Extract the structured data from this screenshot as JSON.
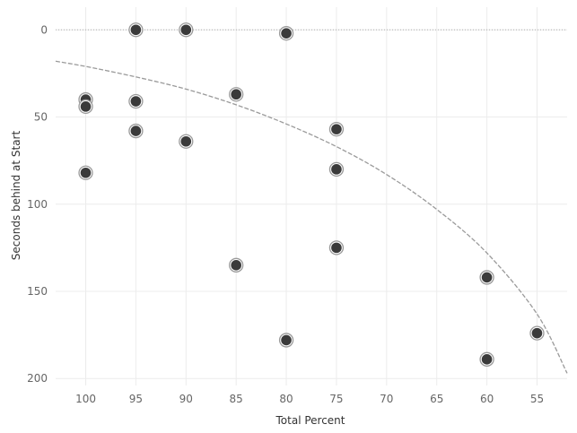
{
  "chart_data": {
    "type": "scatter",
    "title": "",
    "xlabel": "Total Percent",
    "ylabel": "Seconds behind at Start",
    "x_reversed": true,
    "y_reversed": true,
    "xlim": [
      103,
      52
    ],
    "ylim": [
      -13,
      204
    ],
    "x_ticks": [
      100,
      95,
      90,
      85,
      80,
      75,
      70,
      65,
      60,
      55
    ],
    "y_ticks": [
      0,
      50,
      100,
      150,
      200
    ],
    "grid": true,
    "legend": "none",
    "reference_line": {
      "y": 0,
      "style": "dotted"
    },
    "series": [
      {
        "points": [
          {
            "x": 100,
            "y": 40
          },
          {
            "x": 100,
            "y": 44
          },
          {
            "x": 100,
            "y": 82
          },
          {
            "x": 95,
            "y": 0
          },
          {
            "x": 95,
            "y": 41
          },
          {
            "x": 95,
            "y": 58
          },
          {
            "x": 90,
            "y": 0
          },
          {
            "x": 90,
            "y": 64
          },
          {
            "x": 85,
            "y": 37
          },
          {
            "x": 85,
            "y": 135
          },
          {
            "x": 80,
            "y": 2
          },
          {
            "x": 80,
            "y": 178
          },
          {
            "x": 75,
            "y": 57
          },
          {
            "x": 75,
            "y": 80
          },
          {
            "x": 75,
            "y": 125
          },
          {
            "x": 60,
            "y": 142
          },
          {
            "x": 60,
            "y": 189
          },
          {
            "x": 55,
            "y": 174
          }
        ]
      }
    ],
    "trend_line": {
      "style": "dashed",
      "points": [
        {
          "x": 103,
          "y": 18
        },
        {
          "x": 100,
          "y": 21
        },
        {
          "x": 95,
          "y": 27
        },
        {
          "x": 90,
          "y": 34
        },
        {
          "x": 85,
          "y": 43
        },
        {
          "x": 80,
          "y": 54
        },
        {
          "x": 75,
          "y": 67
        },
        {
          "x": 70,
          "y": 83
        },
        {
          "x": 65,
          "y": 103
        },
        {
          "x": 60,
          "y": 128
        },
        {
          "x": 55,
          "y": 163
        },
        {
          "x": 52,
          "y": 197
        }
      ]
    },
    "colors": {
      "point_fill": "#3a3a3a",
      "point_ring": "#9a9a9a",
      "trend": "#9a9a9a",
      "grid": "#ececec",
      "zero_line": "#b0b0b0"
    }
  }
}
